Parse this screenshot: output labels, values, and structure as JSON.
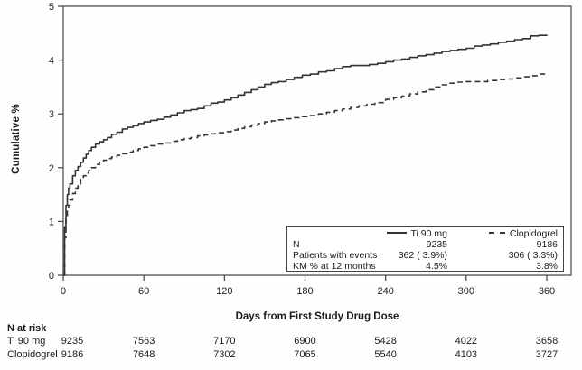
{
  "figure": {
    "y_axis_title": "Cumulative %",
    "x_axis_title": "Days from First Study Drug Dose"
  },
  "chart_data": {
    "type": "line",
    "subtype": "kaplan-meier-cumulative-incidence-step",
    "title": "",
    "xlabel": "Days from First Study Drug Dose",
    "ylabel": "Cumulative %",
    "xlim": [
      0,
      378
    ],
    "ylim": [
      0,
      5
    ],
    "xticks": [
      0,
      60,
      120,
      180,
      240,
      300,
      360
    ],
    "yticks": [
      0,
      1,
      2,
      3,
      4,
      5
    ],
    "grid": false,
    "legend_position": "inside-bottom-right",
    "series": [
      {
        "name": "Ti 90 mg",
        "style": "solid",
        "color": "#333333",
        "km_pct_12_months": 4.5,
        "points": [
          [
            0,
            0
          ],
          [
            1,
            0.9
          ],
          [
            2,
            1.3
          ],
          [
            3,
            1.5
          ],
          [
            4,
            1.62
          ],
          [
            5,
            1.7
          ],
          [
            7,
            1.85
          ],
          [
            9,
            1.95
          ],
          [
            11,
            2.02
          ],
          [
            13,
            2.1
          ],
          [
            15,
            2.18
          ],
          [
            17,
            2.25
          ],
          [
            19,
            2.32
          ],
          [
            21,
            2.38
          ],
          [
            24,
            2.44
          ],
          [
            27,
            2.48
          ],
          [
            30,
            2.52
          ],
          [
            33,
            2.56
          ],
          [
            36,
            2.62
          ],
          [
            40,
            2.66
          ],
          [
            44,
            2.72
          ],
          [
            48,
            2.75
          ],
          [
            52,
            2.78
          ],
          [
            56,
            2.82
          ],
          [
            60,
            2.85
          ],
          [
            65,
            2.88
          ],
          [
            70,
            2.9
          ],
          [
            75,
            2.94
          ],
          [
            80,
            2.98
          ],
          [
            85,
            3.02
          ],
          [
            90,
            3.06
          ],
          [
            95,
            3.08
          ],
          [
            100,
            3.1
          ],
          [
            105,
            3.15
          ],
          [
            110,
            3.2
          ],
          [
            115,
            3.22
          ],
          [
            120,
            3.26
          ],
          [
            125,
            3.3
          ],
          [
            130,
            3.35
          ],
          [
            135,
            3.4
          ],
          [
            140,
            3.45
          ],
          [
            145,
            3.5
          ],
          [
            150,
            3.55
          ],
          [
            155,
            3.58
          ],
          [
            160,
            3.6
          ],
          [
            166,
            3.64
          ],
          [
            172,
            3.68
          ],
          [
            178,
            3.72
          ],
          [
            184,
            3.74
          ],
          [
            190,
            3.78
          ],
          [
            196,
            3.8
          ],
          [
            202,
            3.84
          ],
          [
            208,
            3.88
          ],
          [
            214,
            3.9
          ],
          [
            222,
            3.9
          ],
          [
            228,
            3.92
          ],
          [
            234,
            3.94
          ],
          [
            240,
            3.97
          ],
          [
            246,
            4.0
          ],
          [
            252,
            4.02
          ],
          [
            258,
            4.05
          ],
          [
            264,
            4.08
          ],
          [
            270,
            4.1
          ],
          [
            276,
            4.13
          ],
          [
            282,
            4.16
          ],
          [
            288,
            4.18
          ],
          [
            294,
            4.2
          ],
          [
            300,
            4.22
          ],
          [
            306,
            4.26
          ],
          [
            312,
            4.28
          ],
          [
            318,
            4.3
          ],
          [
            324,
            4.33
          ],
          [
            330,
            4.35
          ],
          [
            336,
            4.38
          ],
          [
            342,
            4.4
          ],
          [
            348,
            4.45
          ],
          [
            354,
            4.46
          ],
          [
            360,
            4.47
          ]
        ]
      },
      {
        "name": "Clopidogrel",
        "style": "dashed",
        "color": "#333333",
        "km_pct_12_months": 3.8,
        "points": [
          [
            0,
            0
          ],
          [
            1,
            0.7
          ],
          [
            2,
            1.05
          ],
          [
            3,
            1.2
          ],
          [
            4,
            1.3
          ],
          [
            5,
            1.4
          ],
          [
            7,
            1.52
          ],
          [
            9,
            1.62
          ],
          [
            11,
            1.7
          ],
          [
            13,
            1.78
          ],
          [
            15,
            1.85
          ],
          [
            17,
            1.9
          ],
          [
            19,
            1.95
          ],
          [
            21,
            2.0
          ],
          [
            24,
            2.06
          ],
          [
            27,
            2.1
          ],
          [
            30,
            2.14
          ],
          [
            33,
            2.17
          ],
          [
            36,
            2.2
          ],
          [
            40,
            2.23
          ],
          [
            44,
            2.26
          ],
          [
            48,
            2.29
          ],
          [
            52,
            2.32
          ],
          [
            56,
            2.35
          ],
          [
            60,
            2.38
          ],
          [
            65,
            2.41
          ],
          [
            70,
            2.44
          ],
          [
            75,
            2.46
          ],
          [
            80,
            2.49
          ],
          [
            85,
            2.52
          ],
          [
            90,
            2.54
          ],
          [
            95,
            2.56
          ],
          [
            100,
            2.59
          ],
          [
            105,
            2.61
          ],
          [
            110,
            2.63
          ],
          [
            115,
            2.65
          ],
          [
            120,
            2.67
          ],
          [
            125,
            2.7
          ],
          [
            130,
            2.73
          ],
          [
            135,
            2.76
          ],
          [
            140,
            2.79
          ],
          [
            145,
            2.82
          ],
          [
            150,
            2.85
          ],
          [
            155,
            2.87
          ],
          [
            160,
            2.89
          ],
          [
            166,
            2.91
          ],
          [
            172,
            2.93
          ],
          [
            178,
            2.95
          ],
          [
            184,
            2.97
          ],
          [
            190,
            3.0
          ],
          [
            196,
            3.03
          ],
          [
            202,
            3.06
          ],
          [
            208,
            3.09
          ],
          [
            214,
            3.12
          ],
          [
            220,
            3.15
          ],
          [
            226,
            3.18
          ],
          [
            232,
            3.21
          ],
          [
            240,
            3.27
          ],
          [
            246,
            3.3
          ],
          [
            252,
            3.33
          ],
          [
            258,
            3.37
          ],
          [
            264,
            3.41
          ],
          [
            270,
            3.45
          ],
          [
            276,
            3.5
          ],
          [
            282,
            3.54
          ],
          [
            288,
            3.57
          ],
          [
            294,
            3.59
          ],
          [
            300,
            3.6
          ],
          [
            308,
            3.6
          ],
          [
            316,
            3.62
          ],
          [
            324,
            3.64
          ],
          [
            330,
            3.65
          ],
          [
            336,
            3.67
          ],
          [
            342,
            3.69
          ],
          [
            348,
            3.71
          ],
          [
            354,
            3.74
          ],
          [
            360,
            3.77
          ]
        ]
      }
    ]
  },
  "legend_table": {
    "ti_label": "Ti 90 mg",
    "clop_label": "Clopidogrel",
    "rows": [
      {
        "label": "N",
        "ti": "9235",
        "clop": "9186"
      },
      {
        "label": "Patients with events",
        "ti": "362 ( 3.9%)",
        "clop": "306 ( 3.3%)"
      },
      {
        "label": "KM % at 12 months",
        "ti": "4.5%",
        "clop": "3.8%"
      }
    ]
  },
  "n_at_risk": {
    "title": "N at risk",
    "rows": [
      {
        "label": "Ti 90 mg",
        "values": [
          "9235",
          "7563",
          "7170",
          "6900",
          "5428",
          "4022",
          "3658"
        ]
      },
      {
        "label": "Clopidogrel",
        "values": [
          "9186",
          "7648",
          "7302",
          "7065",
          "5540",
          "4103",
          "3727"
        ]
      }
    ]
  },
  "colors": {
    "curve": "#333333",
    "axis": "#444444",
    "text": "#1a1a1a"
  }
}
